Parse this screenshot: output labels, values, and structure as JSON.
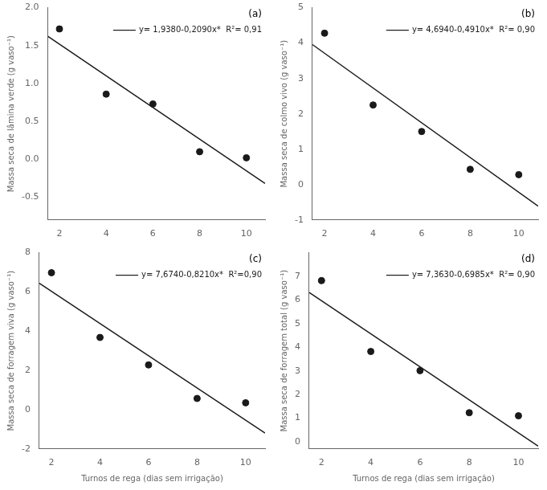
{
  "chart_data": [
    {
      "type": "scatter",
      "ylabel": "Massa seca de lâmina verde (g vaso⁻¹)",
      "annotations": [
        "(a)",
        "y= 1,9380-0,2090x*  R²= 0,91"
      ],
      "series": [
        {
          "type": "scatter",
          "marker": "circle",
          "color": "#1a1a1a",
          "x": [
            2,
            4,
            6,
            8,
            10
          ],
          "values": [
            1.72,
            0.86,
            0.73,
            0.1,
            0.02
          ]
        },
        {
          "type": "line",
          "line_style": "solid",
          "color": "#1a1a1a",
          "x": [
            1.5,
            10.8
          ],
          "values": [
            1.6245,
            -0.3192
          ]
        }
      ],
      "xlim": [
        1.5,
        10.8
      ],
      "xticks": [
        2,
        4,
        6,
        8,
        10
      ],
      "ylim": [
        -0.8,
        2.0
      ],
      "yticks": [
        -0.5,
        {
          "value": 0,
          "label": "0.0"
        },
        0.5,
        {
          "value": 1,
          "label": "1.0"
        },
        1.5,
        {
          "value": 2,
          "label": "2.0"
        }
      ],
      "grid": false
    },
    {
      "type": "scatter",
      "ylabel": "Massa seca de colmo vivo (g vaso⁻¹)",
      "annotations": [
        "(b)",
        "y= 4,6940-0,4910x*  R²= 0,90"
      ],
      "series": [
        {
          "type": "scatter",
          "marker": "circle",
          "color": "#1a1a1a",
          "x": [
            2,
            4,
            6,
            8,
            10
          ],
          "values": [
            4.28,
            2.25,
            1.5,
            0.43,
            0.28
          ]
        },
        {
          "type": "line",
          "line_style": "solid",
          "color": "#1a1a1a",
          "x": [
            1.5,
            10.8
          ],
          "values": [
            3.9575,
            -0.6088
          ]
        }
      ],
      "xlim": [
        1.5,
        10.8
      ],
      "xticks": [
        2,
        4,
        6,
        8,
        10
      ],
      "ylim": [
        -1.0,
        5.0
      ],
      "yticks": [
        -1,
        0,
        1,
        2,
        3,
        4,
        5
      ],
      "grid": false
    },
    {
      "type": "scatter",
      "ylabel": "Massa seca de forragem viva (g vaso⁻¹)",
      "xlabel": "Turnos de rega (dias sem irrigação)",
      "annotations": [
        "(c)",
        "y= 7,6740-0,8210x*  R²=0,90"
      ],
      "series": [
        {
          "type": "scatter",
          "marker": "circle",
          "color": "#1a1a1a",
          "x": [
            2,
            4,
            6,
            8,
            10
          ],
          "values": [
            6.98,
            3.68,
            2.28,
            0.57,
            0.35
          ]
        },
        {
          "type": "line",
          "line_style": "solid",
          "color": "#1a1a1a",
          "x": [
            1.5,
            10.8
          ],
          "values": [
            6.4425,
            -1.1928
          ]
        }
      ],
      "xlim": [
        1.5,
        10.8
      ],
      "xticks": [
        2,
        4,
        6,
        8,
        10
      ],
      "ylim": [
        -2.0,
        8.0
      ],
      "yticks": [
        -2,
        0,
        2,
        4,
        6,
        8
      ],
      "grid": false
    },
    {
      "type": "scatter",
      "ylabel": "Massa seca de forragem total (g vaso⁻¹)",
      "xlabel": "Turnos de rega (dias sem irrigação)",
      "annotations": [
        "(d)",
        "y= 7,3630-0,6985x*  R²= 0,90"
      ],
      "series": [
        {
          "type": "scatter",
          "marker": "circle",
          "color": "#1a1a1a",
          "x": [
            2,
            4,
            6,
            8,
            10
          ],
          "values": [
            6.82,
            3.82,
            3.01,
            1.23,
            1.1
          ]
        },
        {
          "type": "line",
          "line_style": "solid",
          "color": "#1a1a1a",
          "x": [
            1.5,
            10.8
          ],
          "values": [
            6.31525,
            -0.1808
          ]
        }
      ],
      "xlim": [
        1.5,
        10.8
      ],
      "xticks": [
        2,
        4,
        6,
        8,
        10
      ],
      "ylim": [
        -0.3,
        8.0
      ],
      "yticks": [
        0,
        1,
        2,
        3,
        4,
        5,
        6,
        7
      ],
      "grid": false
    }
  ]
}
